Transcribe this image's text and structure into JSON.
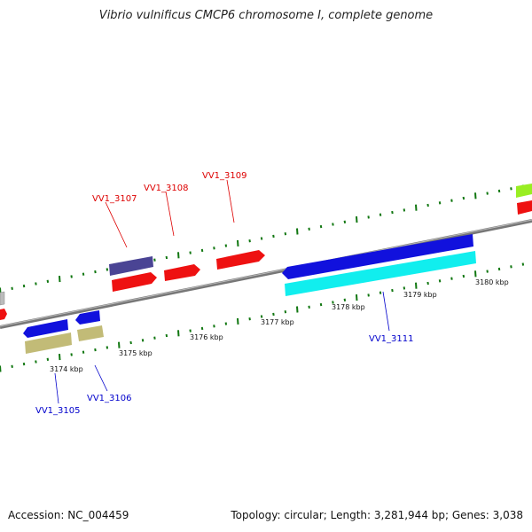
{
  "title": "Vibrio vulnificus CMCP6 chromosome I, complete genome",
  "footer": {
    "accession": "Accession: NC_004459",
    "topology": "Topology: circular; Length: 3,281,944 bp; Genes: 3,038"
  },
  "colors": {
    "backbone": "#888888",
    "tick": "#117711",
    "label_forward": "#dd0000",
    "label_reverse": "#0000cc",
    "gene_red": "#ee1111",
    "gene_blue": "#1111dd",
    "gene_purple": "#4a4494",
    "gene_cyan": "#11eeee",
    "gene_khaki": "#c2bb77",
    "gene_lime": "#99ee22"
  },
  "scale": {
    "labels": [
      "3174 kbp",
      "3175 kbp",
      "3176 kbp",
      "3177 kbp",
      "3178 kbp",
      "3179 kbp",
      "3180 kbp"
    ]
  },
  "gene_labels": [
    {
      "text": "VV1_3105",
      "strand": "reverse"
    },
    {
      "text": "VV1_3106",
      "strand": "reverse"
    },
    {
      "text": "VV1_3107",
      "strand": "forward"
    },
    {
      "text": "VV1_3108",
      "strand": "forward"
    },
    {
      "text": "VV1_3109",
      "strand": "forward"
    },
    {
      "text": "VV1_3111",
      "strand": "reverse"
    }
  ]
}
